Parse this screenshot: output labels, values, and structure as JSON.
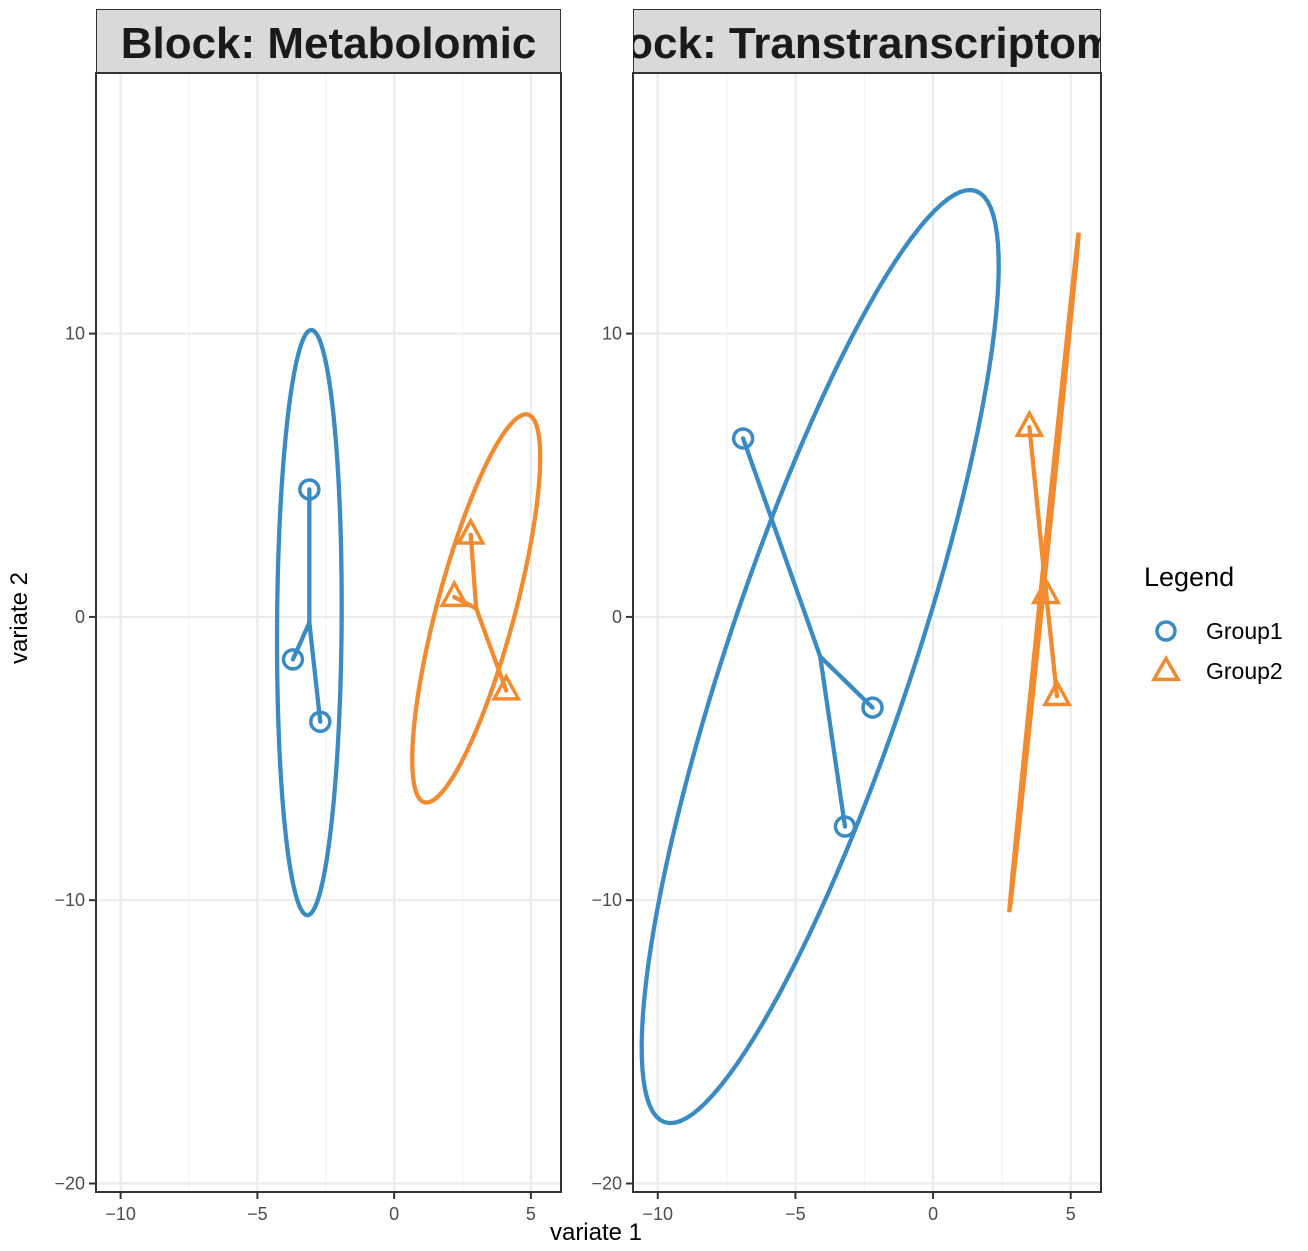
{
  "chart_data": {
    "type": "scatter",
    "xlabel": "variate 1",
    "ylabel": "variate 2",
    "xlim": [
      -10.9,
      6.1
    ],
    "ylim": [
      -20.3,
      19.2
    ],
    "x_ticks": [
      -10,
      -5,
      0,
      5
    ],
    "y_ticks": [
      -20,
      -10,
      0,
      10
    ],
    "grid": true,
    "legend": {
      "title": "Legend",
      "position": "right",
      "entries": [
        {
          "label": "Group1",
          "shape": "circle",
          "color": "#3a8ac4"
        },
        {
          "label": "Group2",
          "shape": "triangle",
          "color": "#f28a30"
        }
      ]
    },
    "panels": [
      {
        "title": "Block: Metabolomic",
        "series": [
          {
            "name": "Group1",
            "color": "#3a8ac4",
            "points": [
              {
                "x": -3.1,
                "y": 4.5
              },
              {
                "x": -3.7,
                "y": -1.5
              },
              {
                "x": -2.7,
                "y": -3.7
              }
            ],
            "centroid": {
              "x": -3.1,
              "y": -0.2
            },
            "ellipse": {
              "cx": -3.1,
              "cy": -0.2,
              "rx": 1.18,
              "ry": 10.33,
              "angle": 0.4
            }
          },
          {
            "name": "Group2",
            "color": "#f28a30",
            "points": [
              {
                "x": 2.8,
                "y": 2.9
              },
              {
                "x": 2.2,
                "y": 0.7
              },
              {
                "x": 4.1,
                "y": -2.6
              }
            ],
            "centroid": {
              "x": 3.0,
              "y": 0.3
            },
            "ellipse": {
              "cx": 3.0,
              "cy": 0.3,
              "rx": 1.42,
              "ry": 7.1,
              "angle": 15.5
            }
          }
        ]
      },
      {
        "title": "Block: Transtranscriptomic",
        "series": [
          {
            "name": "Group1",
            "color": "#3a8ac4",
            "points": [
              {
                "x": -6.9,
                "y": 6.3
              },
              {
                "x": -2.2,
                "y": -3.2
              },
              {
                "x": -3.2,
                "y": -7.4
              }
            ],
            "centroid": {
              "x": -4.1,
              "y": -1.4
            },
            "ellipse": {
              "cx": -4.1,
              "cy": -1.4,
              "rx": 3.35,
              "ry": 17.38,
              "angle": 19.0
            }
          },
          {
            "name": "Group2",
            "color": "#f28a30",
            "points": [
              {
                "x": 3.5,
                "y": 6.7
              },
              {
                "x": 4.1,
                "y": 0.8
              },
              {
                "x": 4.5,
                "y": -2.8
              }
            ],
            "centroid": {
              "x": 4.03,
              "y": 1.57
            },
            "ellipse": {
              "cx": 4.03,
              "cy": 1.57,
              "rx": 0.05,
              "ry": 12.05,
              "angle": 6.0
            }
          }
        ]
      }
    ]
  }
}
